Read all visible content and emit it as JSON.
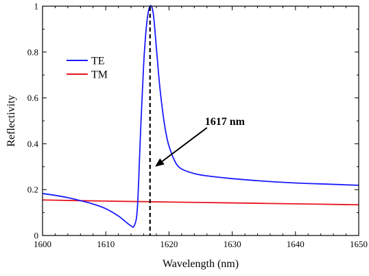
{
  "chart_data": {
    "type": "line",
    "xlabel": "Wavelength (nm)",
    "ylabel": "Reflectivity",
    "xlim": [
      1600,
      1650
    ],
    "ylim": [
      0,
      1
    ],
    "xticks": [
      1600,
      1610,
      1620,
      1630,
      1640,
      1650
    ],
    "yticks": [
      0,
      0.2,
      0.4,
      0.6,
      0.8,
      1
    ],
    "ytick_labels": [
      "0",
      "0.2",
      "0.4",
      "0.6",
      "0.8",
      "1"
    ],
    "legend_position": "upper-left",
    "grid": false,
    "series": [
      {
        "name": "TE",
        "color": "#1a1aff",
        "x": [
          1600,
          1602,
          1604,
          1606,
          1608,
          1610,
          1612,
          1613,
          1614,
          1614.5,
          1615,
          1615.5,
          1616,
          1616.5,
          1617,
          1617.5,
          1618,
          1618.5,
          1619,
          1619.5,
          1620,
          1621,
          1622,
          1624,
          1626,
          1630,
          1635,
          1640,
          1645,
          1650
        ],
        "y": [
          0.183,
          0.175,
          0.165,
          0.152,
          0.137,
          0.117,
          0.085,
          0.063,
          0.042,
          0.043,
          0.12,
          0.45,
          0.75,
          0.93,
          1.0,
          0.97,
          0.82,
          0.66,
          0.54,
          0.45,
          0.39,
          0.32,
          0.29,
          0.27,
          0.26,
          0.248,
          0.237,
          0.229,
          0.224,
          0.219
        ]
      },
      {
        "name": "TM",
        "color": "#e8141e",
        "x": [
          1600,
          1610,
          1620,
          1630,
          1640,
          1650
        ],
        "y": [
          0.155,
          0.15,
          0.146,
          0.142,
          0.138,
          0.134
        ]
      }
    ],
    "marker_line": {
      "x": 1617,
      "style": "dashed",
      "color": "#000000"
    },
    "annotation": {
      "text": "1617 nm",
      "arrow_target": [
        1617.8,
        0.3
      ],
      "arrow_tail": [
        1626,
        0.47
      ]
    }
  }
}
